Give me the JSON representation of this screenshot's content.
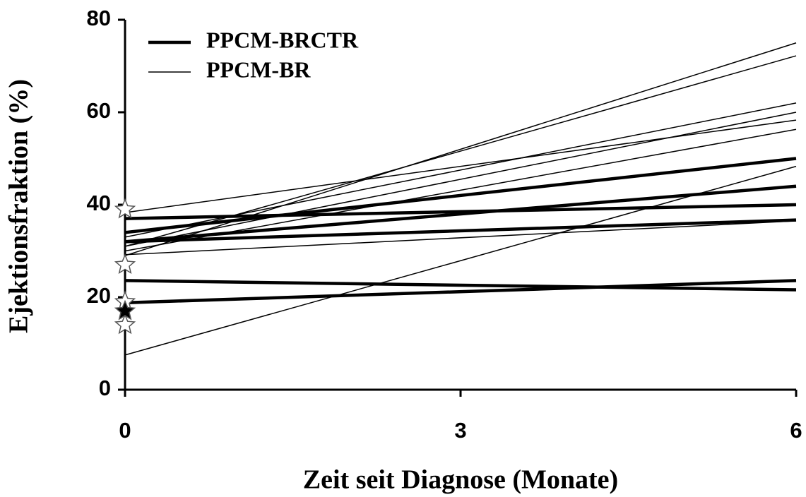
{
  "chart_data": {
    "type": "line",
    "y_label": "Ejektionsfraktion (%)",
    "x_label": "Zeit seit Diagnose (Monate)",
    "x": [
      0,
      6
    ],
    "xlim": [
      0,
      6
    ],
    "xticks": [
      0,
      3,
      6
    ],
    "ylim": [
      0,
      80
    ],
    "yticks": [
      0,
      20,
      40,
      60,
      80
    ],
    "legend": "upper left",
    "series": [
      {
        "name": "PPCM-BRCTR",
        "color": "#000000",
        "width": 4.5,
        "lines": [
          {
            "values": [
              37,
              40
            ]
          },
          {
            "values": [
              34,
              50
            ]
          },
          {
            "values": [
              32,
              44
            ]
          },
          {
            "values": [
              32,
              36.7
            ]
          },
          {
            "values": [
              23.6,
              21.6
            ]
          },
          {
            "values": [
              18.8,
              23.6
            ]
          }
        ]
      },
      {
        "name": "PPCM-BR",
        "color": "#000000",
        "width": 1.5,
        "lines": [
          {
            "values": [
              7.5,
              48.3
            ]
          },
          {
            "values": [
              29,
              75
            ]
          },
          {
            "values": [
              31,
              72.2
            ]
          },
          {
            "values": [
              38.3,
              58.3
            ]
          },
          {
            "values": [
              33,
              62
            ]
          },
          {
            "values": [
              31,
              60
            ]
          },
          {
            "values": [
              30,
              56.3
            ]
          },
          {
            "values": [
              29.2,
              36.5
            ]
          }
        ]
      }
    ],
    "star_markers": [
      {
        "value": 39,
        "filled": false
      },
      {
        "value": 27,
        "filled": false
      },
      {
        "value": 19,
        "filled": false
      },
      {
        "value": 14,
        "filled": false
      },
      {
        "value": 17,
        "filled": true
      }
    ]
  }
}
